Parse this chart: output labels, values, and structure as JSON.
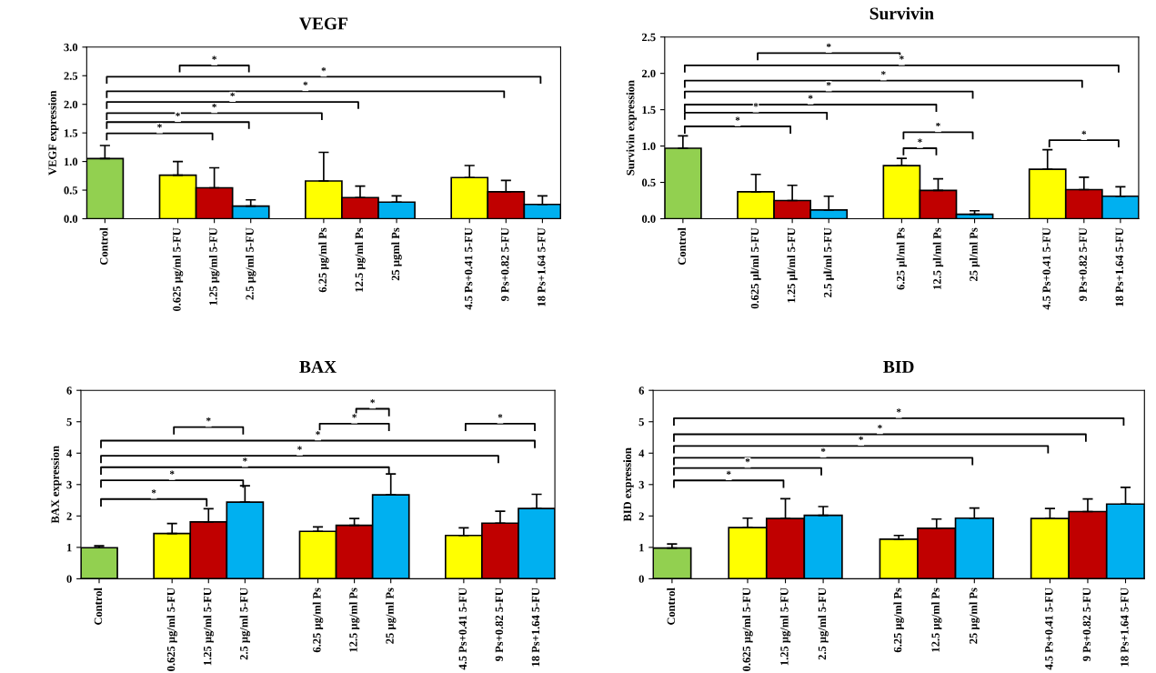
{
  "chart_data": [
    {
      "type": "bar",
      "title": "VEGF",
      "ylabel": "VEGF expression",
      "categories": [
        "Control",
        null,
        "0.625 µg/ml 5-FU",
        "1.25 µg/ml 5-FU",
        "2.5 µg/ml 5-FU",
        null,
        "6.25 µg/ml Ps",
        "12.5 µg/ml Ps",
        "25 µgml Ps",
        null,
        "4.5 Ps+0.41 5-FU",
        "9 Ps+0.82 5-FU",
        "18 Ps+1.64 5-FU"
      ],
      "values": [
        1.05,
        null,
        0.76,
        0.54,
        0.22,
        null,
        0.66,
        0.37,
        0.29,
        null,
        0.72,
        0.47,
        0.25
      ],
      "errors": [
        [
          1.05,
          1.28
        ],
        null,
        [
          0.76,
          1.0
        ],
        [
          0.54,
          0.89
        ],
        [
          0.22,
          0.33
        ],
        null,
        [
          0.66,
          1.16
        ],
        [
          0.37,
          0.57
        ],
        [
          0.29,
          0.4
        ],
        null,
        [
          0.72,
          0.93
        ],
        [
          0.47,
          0.67
        ],
        [
          0.25,
          0.4
        ]
      ],
      "colors": [
        "#92d050",
        null,
        "#ffff00",
        "#c00000",
        "#00b0f0",
        null,
        "#ffff00",
        "#c00000",
        "#00b0f0",
        null,
        "#ffff00",
        "#c00000",
        "#00b0f0"
      ],
      "ylim": [
        0,
        3
      ],
      "yticks": [
        {
          "value": 0,
          "label": "0.0"
        },
        {
          "value": 0.5,
          "label": "0.5"
        },
        {
          "value": 1,
          "label": "1.0"
        },
        {
          "value": 1.5,
          "label": "1.5"
        },
        {
          "value": 2,
          "label": "2.0"
        },
        {
          "value": 2.5,
          "label": "2.5"
        },
        {
          "value": 3,
          "label": "3.0"
        }
      ],
      "grid": false,
      "annotations": [
        "*",
        "*",
        "*",
        "*",
        "*",
        "*",
        "*"
      ]
    },
    {
      "type": "bar",
      "title": "Survivin",
      "ylabel": "Survivin expression",
      "categories": [
        "Control",
        null,
        "0.625 µl/ml 5-FU",
        "1.25 µl/ml 5-FU",
        "2.5 µl/ml 5-FU",
        null,
        "6.25 µl/ml Ps",
        "12.5 µl/ml Ps",
        "25 µl/ml Ps",
        null,
        "4.5 Ps+0.41 5-FU",
        "9 Ps+0.82 5-FU",
        "18 Ps+1.64 5-FU"
      ],
      "values": [
        0.97,
        null,
        0.37,
        0.25,
        0.12,
        null,
        0.73,
        0.39,
        0.06,
        null,
        0.68,
        0.4,
        0.31
      ],
      "errors": [
        [
          0.97,
          1.14
        ],
        null,
        [
          0.37,
          0.61
        ],
        [
          0.25,
          0.46
        ],
        [
          0.12,
          0.31
        ],
        null,
        [
          0.73,
          0.83
        ],
        [
          0.39,
          0.55
        ],
        [
          0.06,
          0.11
        ],
        null,
        [
          0.68,
          0.95
        ],
        [
          0.4,
          0.57
        ],
        [
          0.31,
          0.44
        ]
      ],
      "colors": [
        "#92d050",
        null,
        "#ffff00",
        "#c00000",
        "#00b0f0",
        null,
        "#ffff00",
        "#c00000",
        "#00b0f0",
        null,
        "#ffff00",
        "#c00000",
        "#00b0f0"
      ],
      "ylim": [
        0,
        2.5
      ],
      "yticks": [
        {
          "value": 0,
          "label": "0.0"
        },
        {
          "value": 0.5,
          "label": "0.5"
        },
        {
          "value": 1,
          "label": "1.0"
        },
        {
          "value": 1.5,
          "label": "1.5"
        },
        {
          "value": 2,
          "label": "2.0"
        },
        {
          "value": 2.5,
          "label": "2.5"
        }
      ],
      "grid": false,
      "annotations": [
        "*",
        "*",
        "*",
        "*",
        "*",
        "*",
        "*",
        "*",
        "*",
        "*"
      ]
    },
    {
      "type": "bar",
      "title": "BAX",
      "ylabel": "BAX expression",
      "categories": [
        "Control",
        null,
        "0.625 µg/ml 5-FU",
        "1.25 µg/ml 5-FU",
        "2.5 µg/ml 5-FU",
        null,
        "6.25 µg/ml Ps",
        "12.5 µg/ml Ps",
        "25 µg/ml Ps",
        null,
        "4.5 Ps+0.41 5-FU",
        "9 Ps+0.82 5-FU",
        "18 Ps+1.64 5-FU"
      ],
      "values": [
        0.99,
        null,
        1.44,
        1.81,
        2.44,
        null,
        1.51,
        1.7,
        2.67,
        null,
        1.38,
        1.77,
        2.24
      ],
      "errors": [
        [
          0.99,
          1.05
        ],
        null,
        [
          1.44,
          1.76
        ],
        [
          1.81,
          2.23
        ],
        [
          2.44,
          2.96
        ],
        null,
        [
          1.51,
          1.65
        ],
        [
          1.7,
          1.92
        ],
        [
          2.67,
          3.34
        ],
        null,
        [
          1.38,
          1.62
        ],
        [
          1.77,
          2.15
        ],
        [
          2.24,
          2.69
        ]
      ],
      "colors": [
        "#92d050",
        null,
        "#ffff00",
        "#c00000",
        "#00b0f0",
        null,
        "#ffff00",
        "#c00000",
        "#00b0f0",
        null,
        "#ffff00",
        "#c00000",
        "#00b0f0"
      ],
      "ylim": [
        0,
        6
      ],
      "yticks": [
        0,
        1,
        2,
        3,
        4,
        5,
        6
      ],
      "grid": false,
      "annotations": [
        "*",
        "*",
        "*",
        "*",
        "*",
        "*",
        "*",
        "*",
        "*"
      ]
    },
    {
      "type": "bar",
      "title": "BID",
      "ylabel": "BID expression",
      "categories": [
        "Control",
        null,
        "0.625 µg/ml 5-FU",
        "1.25 µg/ml 5-FU",
        "2.5 µg/ml 5-FU",
        null,
        "6.25 µg/ml Ps",
        "12.5 µg/ml Ps",
        "25 µg/ml Ps",
        null,
        "4.5 Ps+0.41 5-FU",
        "9 Ps+0.82 5-FU",
        "18 Ps+1.64 5-FU"
      ],
      "values": [
        0.98,
        null,
        1.63,
        1.92,
        2.02,
        null,
        1.26,
        1.61,
        1.93,
        null,
        1.92,
        2.14,
        2.38
      ],
      "errors": [
        [
          0.98,
          1.11
        ],
        null,
        [
          1.63,
          1.93
        ],
        [
          1.92,
          2.55
        ],
        [
          2.02,
          2.3
        ],
        null,
        [
          1.26,
          1.38
        ],
        [
          1.61,
          1.9
        ],
        [
          1.93,
          2.25
        ],
        null,
        [
          1.92,
          2.24
        ],
        [
          2.14,
          2.54
        ],
        [
          2.38,
          2.91
        ]
      ],
      "colors": [
        "#92d050",
        null,
        "#ffff00",
        "#c00000",
        "#00b0f0",
        null,
        "#ffff00",
        "#c00000",
        "#00b0f0",
        null,
        "#ffff00",
        "#c00000",
        "#00b0f0"
      ],
      "ylim": [
        0,
        6
      ],
      "yticks": [
        0,
        1,
        2,
        3,
        4,
        5,
        6
      ],
      "grid": false,
      "annotations": [
        "*",
        "*",
        "*",
        "*",
        "*",
        "*"
      ]
    }
  ]
}
